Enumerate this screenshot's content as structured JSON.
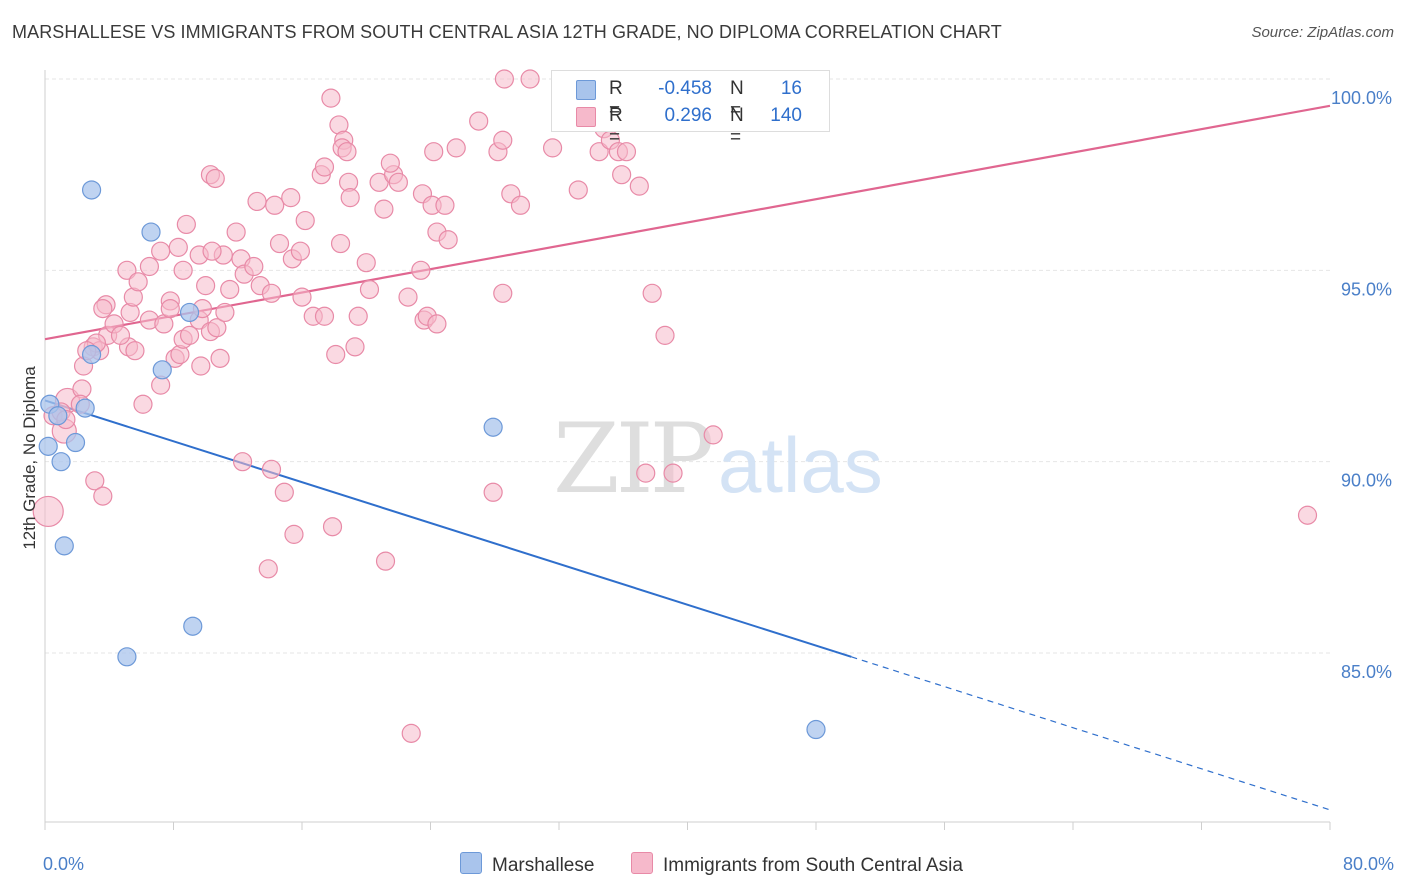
{
  "header": {
    "title": "MARSHALLESE VS IMMIGRANTS FROM SOUTH CENTRAL ASIA 12TH GRADE, NO DIPLOMA CORRELATION CHART",
    "source": "Source: ZipAtlas.com"
  },
  "watermark": {
    "part1": "ZIP",
    "part2": "atlas"
  },
  "legend": {
    "r_label": "R =",
    "n_label": "N =",
    "series1": {
      "r": "-0.458",
      "n": "16"
    },
    "series2": {
      "r": "0.296",
      "n": "140"
    }
  },
  "colors": {
    "blue_fill": "#a9c4ec",
    "blue_stroke": "#6d99d8",
    "blue_line": "#2f6fcc",
    "pink_fill": "#f6b9cb",
    "pink_stroke": "#e88aa7",
    "pink_line": "#e06690"
  },
  "chart_data": {
    "type": "scatter",
    "xlabel": "",
    "ylabel": "12th Grade, No Diploma",
    "xlim": [
      0,
      80
    ],
    "ylim": [
      80.5,
      100.8
    ],
    "x_tick_labels": [
      "0.0%",
      "80.0%"
    ],
    "y_ticks": [
      85,
      90,
      95,
      100
    ],
    "y_tick_labels": [
      "85.0%",
      "90.0%",
      "95.0%",
      "100.0%"
    ],
    "grid": true,
    "legend_position": "top-center",
    "series": [
      {
        "name": "Marshallese",
        "color": "#a9c4ec",
        "points": [
          [
            0.3,
            91.5,
            14
          ],
          [
            0.8,
            91.2,
            14
          ],
          [
            2.9,
            92.8,
            14
          ],
          [
            2.5,
            91.4,
            14
          ],
          [
            1.9,
            90.5,
            14
          ],
          [
            1.0,
            90.0,
            14
          ],
          [
            2.9,
            97.1,
            14
          ],
          [
            6.6,
            96.0,
            14
          ],
          [
            9.0,
            93.9,
            14
          ],
          [
            7.3,
            92.4,
            14
          ],
          [
            0.2,
            90.4,
            14
          ],
          [
            1.2,
            87.8,
            14
          ],
          [
            9.2,
            85.7,
            14
          ],
          [
            5.1,
            84.9,
            14
          ],
          [
            27.9,
            90.9,
            14
          ],
          [
            48.0,
            83.0,
            14
          ]
        ],
        "trend": {
          "x0": 0,
          "y0": 91.6,
          "x1": 50.2,
          "y1": 84.9,
          "dash_x1": 80,
          "dash_y1": 80.9
        }
      },
      {
        "name": "Immigrants from South Central Asia",
        "color": "#f6b9cb",
        "points": [
          [
            0.2,
            88.7,
            26
          ],
          [
            1.2,
            90.8,
            20
          ],
          [
            0.5,
            91.2,
            14
          ],
          [
            1.4,
            91.6,
            20
          ],
          [
            1.0,
            91.3,
            14
          ],
          [
            2.3,
            91.9,
            14
          ],
          [
            2.4,
            92.5,
            14
          ],
          [
            3.0,
            93.0,
            14
          ],
          [
            3.4,
            92.9,
            14
          ],
          [
            3.9,
            93.3,
            14
          ],
          [
            4.3,
            93.6,
            14
          ],
          [
            5.2,
            93.0,
            14
          ],
          [
            5.6,
            92.9,
            14
          ],
          [
            5.3,
            93.9,
            14
          ],
          [
            3.8,
            94.1,
            14
          ],
          [
            5.5,
            94.3,
            14
          ],
          [
            3.2,
            93.1,
            14
          ],
          [
            4.7,
            93.3,
            14
          ],
          [
            2.2,
            91.5,
            14
          ],
          [
            3.1,
            89.5,
            14
          ],
          [
            3.6,
            89.1,
            14
          ],
          [
            6.1,
            91.5,
            14
          ],
          [
            7.2,
            92.0,
            14
          ],
          [
            6.5,
            93.7,
            14
          ],
          [
            7.4,
            93.6,
            14
          ],
          [
            7.8,
            94.2,
            14
          ],
          [
            8.1,
            92.7,
            14
          ],
          [
            8.4,
            92.8,
            14
          ],
          [
            8.6,
            93.2,
            14
          ],
          [
            7.8,
            94.0,
            14
          ],
          [
            8.6,
            95.0,
            14
          ],
          [
            9.0,
            93.3,
            14
          ],
          [
            9.6,
            93.7,
            14
          ],
          [
            9.8,
            94.0,
            14
          ],
          [
            9.7,
            92.5,
            14
          ],
          [
            10.3,
            93.4,
            14
          ],
          [
            10.0,
            94.6,
            14
          ],
          [
            10.9,
            92.7,
            14
          ],
          [
            10.7,
            93.5,
            14
          ],
          [
            11.2,
            93.9,
            14
          ],
          [
            11.1,
            95.4,
            14
          ],
          [
            11.5,
            94.5,
            14
          ],
          [
            12.2,
            95.3,
            14
          ],
          [
            12.4,
            94.9,
            14
          ],
          [
            13.0,
            95.1,
            14
          ],
          [
            13.4,
            94.6,
            14
          ],
          [
            14.1,
            94.4,
            14
          ],
          [
            14.6,
            95.7,
            14
          ],
          [
            15.4,
            95.3,
            14
          ],
          [
            15.9,
            95.5,
            14
          ],
          [
            16.0,
            94.3,
            14
          ],
          [
            16.7,
            93.8,
            14
          ],
          [
            17.4,
            93.8,
            14
          ],
          [
            18.1,
            92.8,
            14
          ],
          [
            18.4,
            95.7,
            14
          ],
          [
            19.3,
            93.0,
            14
          ],
          [
            19.5,
            93.8,
            14
          ],
          [
            20.0,
            95.2,
            14
          ],
          [
            20.2,
            94.5,
            14
          ],
          [
            6.5,
            95.1,
            14
          ],
          [
            5.1,
            95.0,
            14
          ],
          [
            5.8,
            94.7,
            14
          ],
          [
            3.6,
            94.0,
            14
          ],
          [
            7.2,
            95.5,
            14
          ],
          [
            8.3,
            95.6,
            14
          ],
          [
            8.8,
            96.2,
            14
          ],
          [
            9.6,
            95.4,
            14
          ],
          [
            10.4,
            95.5,
            14
          ],
          [
            11.9,
            96.0,
            14
          ],
          [
            13.2,
            96.8,
            14
          ],
          [
            14.3,
            96.7,
            14
          ],
          [
            15.3,
            96.9,
            14
          ],
          [
            16.2,
            96.3,
            14
          ],
          [
            17.2,
            97.5,
            14
          ],
          [
            17.4,
            97.7,
            14
          ],
          [
            18.9,
            97.3,
            14
          ],
          [
            19.0,
            96.9,
            14
          ],
          [
            20.8,
            97.3,
            14
          ],
          [
            21.1,
            96.6,
            14
          ],
          [
            21.7,
            97.5,
            14
          ],
          [
            21.5,
            97.8,
            14
          ],
          [
            22.0,
            97.3,
            14
          ],
          [
            10.3,
            97.5,
            14
          ],
          [
            10.6,
            97.4,
            14
          ],
          [
            18.3,
            98.8,
            14
          ],
          [
            18.6,
            98.4,
            14
          ],
          [
            18.5,
            98.2,
            14
          ],
          [
            17.8,
            99.5,
            14
          ],
          [
            18.8,
            98.1,
            14
          ],
          [
            23.5,
            97.0,
            14
          ],
          [
            24.1,
            96.7,
            14
          ],
          [
            24.4,
            96.0,
            14
          ],
          [
            24.9,
            96.7,
            14
          ],
          [
            24.2,
            98.1,
            14
          ],
          [
            25.1,
            95.8,
            14
          ],
          [
            25.6,
            98.2,
            14
          ],
          [
            27.0,
            98.9,
            14
          ],
          [
            28.2,
            98.1,
            14
          ],
          [
            28.5,
            98.4,
            14
          ],
          [
            29.0,
            97.0,
            14
          ],
          [
            29.6,
            96.7,
            14
          ],
          [
            28.6,
            100.0,
            14
          ],
          [
            30.2,
            100.0,
            14
          ],
          [
            31.6,
            98.2,
            14
          ],
          [
            33.2,
            97.1,
            14
          ],
          [
            34.5,
            98.1,
            14
          ],
          [
            34.8,
            98.7,
            14
          ],
          [
            35.2,
            98.4,
            14
          ],
          [
            35.7,
            98.1,
            14
          ],
          [
            36.2,
            98.1,
            14
          ],
          [
            35.9,
            97.5,
            14
          ],
          [
            37.0,
            97.2,
            14
          ],
          [
            23.6,
            93.7,
            14
          ],
          [
            23.8,
            93.8,
            14
          ],
          [
            24.4,
            93.6,
            14
          ],
          [
            22.6,
            94.3,
            14
          ],
          [
            23.4,
            95.0,
            14
          ],
          [
            28.5,
            94.4,
            14
          ],
          [
            37.8,
            94.4,
            14
          ],
          [
            38.6,
            93.3,
            14
          ],
          [
            12.3,
            90.0,
            14
          ],
          [
            14.1,
            89.8,
            14
          ],
          [
            14.9,
            89.2,
            14
          ],
          [
            15.5,
            88.1,
            14
          ],
          [
            13.9,
            87.2,
            14
          ],
          [
            17.9,
            88.3,
            14
          ],
          [
            21.2,
            87.4,
            14
          ],
          [
            22.8,
            82.9,
            14
          ],
          [
            27.9,
            89.2,
            14
          ],
          [
            37.4,
            89.7,
            14
          ],
          [
            39.1,
            89.7,
            14
          ],
          [
            41.6,
            90.7,
            14
          ],
          [
            78.6,
            88.6,
            14
          ],
          [
            2.6,
            92.9,
            14
          ],
          [
            1.3,
            91.1,
            14
          ]
        ],
        "trend": {
          "x0": 0,
          "y0": 93.2,
          "x1": 80,
          "y1": 99.3
        }
      }
    ]
  }
}
